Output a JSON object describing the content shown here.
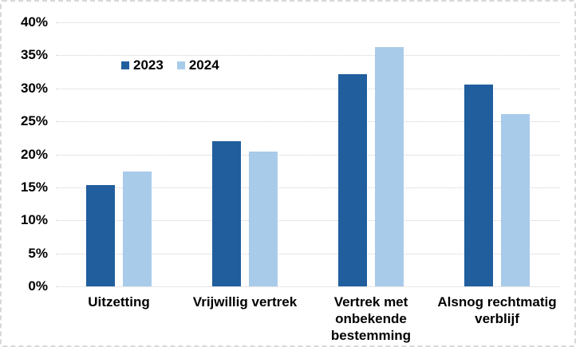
{
  "chart_data": {
    "type": "bar",
    "title": "",
    "xlabel": "",
    "ylabel": "",
    "categories": [
      "Uitzetting",
      "Vrijwillig vertrek",
      "Vertrek met\nonbekende\nbestemming",
      "Alsnog rechtmatig\nverblijf"
    ],
    "series": [
      {
        "name": "2023",
        "color": "#205E9E",
        "values": [
          15.4,
          22.0,
          32.2,
          30.6
        ]
      },
      {
        "name": "2024",
        "color": "#A9CBEA",
        "values": [
          17.4,
          20.4,
          36.2,
          26.1
        ]
      }
    ],
    "ylim": [
      0,
      40
    ],
    "ytick_labels": [
      "0%",
      "5%",
      "10%",
      "15%",
      "20%",
      "25%",
      "30%",
      "35%",
      "40%"
    ],
    "grid": true,
    "gridline_style": "dotted",
    "grid_color": "#cfcfcf",
    "legend_position": "inside-top-left-of-plot",
    "frame_border_color": "#d8d8d8",
    "text_color": "#000000",
    "background_color": "#ffffff"
  }
}
